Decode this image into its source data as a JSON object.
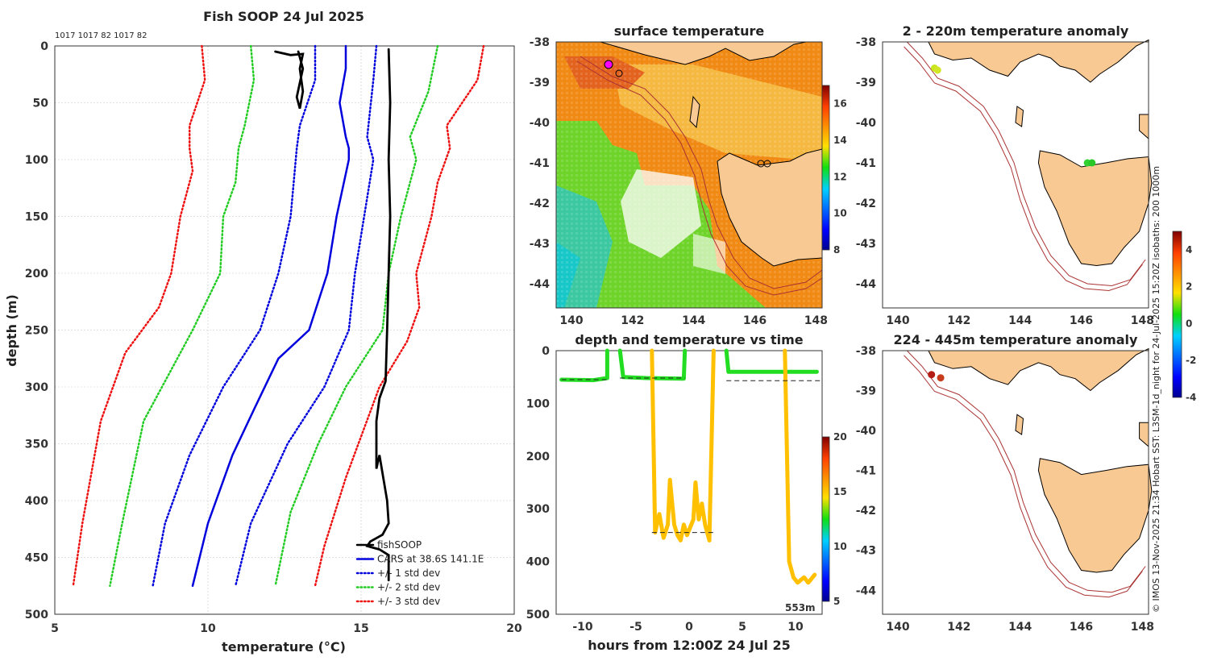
{
  "header": {
    "title": "Fish SOOP 24 Jul 2025",
    "ids_label": "1017 1017 82 1017 82",
    "credit": "© IMOS 13-Nov-2025 21:34 Hobart SST: L3SM-1d_night for 24-Jul-2025 15:20Z isobaths: 200  1000m"
  },
  "colors": {
    "fishsoop": "#000000",
    "cars": "#0000dd",
    "std1": "#0000dd",
    "std2": "#22cc22",
    "std3": "#ee1111",
    "land": "#f9c993",
    "isobath": "#aa3333"
  },
  "chart_data": [
    {
      "id": "profile",
      "type": "line",
      "title": "",
      "xlabel": "temperature (°C)",
      "ylabel": "depth (m)",
      "xlim": [
        5,
        20
      ],
      "ylim": [
        500,
        0
      ],
      "xticks": [
        5,
        10,
        15,
        20
      ],
      "yticks": [
        0,
        50,
        100,
        150,
        200,
        250,
        300,
        350,
        400,
        450,
        500
      ],
      "legend": [
        "fishSOOP",
        "CARS at 38.6S 141.1E",
        "+/- 1 std dev",
        "+/- 2 std dev",
        "+/- 3 std dev"
      ],
      "legend_position": "bottom-right",
      "series": [
        {
          "name": "CARS at 38.6S 141.1E",
          "style": "solid",
          "color": "cars",
          "points": [
            [
              14.5,
              0
            ],
            [
              14.5,
              20
            ],
            [
              14.3,
              50
            ],
            [
              14.5,
              80
            ],
            [
              14.6,
              90
            ],
            [
              14.6,
              100
            ],
            [
              14.2,
              150
            ],
            [
              13.9,
              200
            ],
            [
              13.3,
              250
            ],
            [
              12.3,
              275
            ],
            [
              11.5,
              320
            ],
            [
              10.8,
              360
            ],
            [
              10.0,
              420
            ],
            [
              9.5,
              475
            ]
          ]
        },
        {
          "name": "+/- 1 std dev",
          "style": "dotted",
          "color": "std1",
          "points": [
            [
              15.5,
              0
            ],
            [
              15.4,
              30
            ],
            [
              15.2,
              80
            ],
            [
              15.4,
              100
            ],
            [
              15.1,
              150
            ],
            [
              14.8,
              200
            ],
            [
              14.6,
              250
            ],
            [
              13.8,
              300
            ],
            [
              12.6,
              350
            ],
            [
              11.4,
              420
            ],
            [
              10.9,
              475
            ]
          ]
        },
        {
          "name": "+/- 1 std dev",
          "style": "dotted",
          "color": "std1",
          "points": [
            [
              13.5,
              0
            ],
            [
              13.5,
              30
            ],
            [
              13.0,
              70
            ],
            [
              12.9,
              90
            ],
            [
              12.7,
              150
            ],
            [
              12.3,
              200
            ],
            [
              11.7,
              250
            ],
            [
              10.5,
              300
            ],
            [
              9.4,
              360
            ],
            [
              8.6,
              420
            ],
            [
              8.2,
              475
            ]
          ]
        },
        {
          "name": "+/- 2 std dev",
          "style": "dotted",
          "color": "std2",
          "points": [
            [
              17.5,
              0
            ],
            [
              17.2,
              40
            ],
            [
              16.6,
              80
            ],
            [
              16.8,
              100
            ],
            [
              16.3,
              150
            ],
            [
              15.9,
              200
            ],
            [
              15.7,
              250
            ],
            [
              14.5,
              300
            ],
            [
              13.6,
              350
            ],
            [
              12.7,
              410
            ],
            [
              12.2,
              475
            ]
          ]
        },
        {
          "name": "+/- 2 std dev",
          "style": "dotted",
          "color": "std2",
          "points": [
            [
              11.4,
              0
            ],
            [
              11.5,
              30
            ],
            [
              11.2,
              70
            ],
            [
              11.0,
              90
            ],
            [
              10.9,
              120
            ],
            [
              10.5,
              150
            ],
            [
              10.4,
              200
            ],
            [
              9.5,
              250
            ],
            [
              7.9,
              330
            ],
            [
              7.2,
              420
            ],
            [
              6.8,
              475
            ]
          ]
        },
        {
          "name": "+/- 3 std dev",
          "style": "dotted",
          "color": "std3",
          "points": [
            [
              19.0,
              0
            ],
            [
              18.8,
              30
            ],
            [
              17.8,
              70
            ],
            [
              17.9,
              90
            ],
            [
              17.5,
              120
            ],
            [
              17.3,
              150
            ],
            [
              16.8,
              200
            ],
            [
              16.9,
              230
            ],
            [
              16.5,
              260
            ],
            [
              15.6,
              300
            ],
            [
              14.5,
              380
            ],
            [
              13.8,
              440
            ],
            [
              13.5,
              475
            ]
          ]
        },
        {
          "name": "+/- 3 std dev",
          "style": "dotted",
          "color": "std3",
          "points": [
            [
              9.8,
              0
            ],
            [
              9.9,
              30
            ],
            [
              9.4,
              70
            ],
            [
              9.4,
              90
            ],
            [
              9.5,
              110
            ],
            [
              9.1,
              150
            ],
            [
              8.8,
              200
            ],
            [
              8.4,
              230
            ],
            [
              7.3,
              270
            ],
            [
              6.5,
              330
            ],
            [
              5.9,
              420
            ],
            [
              5.6,
              475
            ]
          ]
        },
        {
          "name": "fishSOOP",
          "style": "solid",
          "color": "fishsoop",
          "points": [
            [
              12.2,
              5
            ],
            [
              12.7,
              8
            ],
            [
              13.1,
              7
            ],
            [
              13.0,
              20
            ],
            [
              13.1,
              40
            ],
            [
              13.0,
              55
            ],
            [
              12.9,
              45
            ],
            [
              13.1,
              20
            ],
            [
              12.95,
              5
            ]
          ]
        },
        {
          "name": "fishSOOP",
          "style": "solid",
          "color": "fishsoop",
          "points": [
            [
              15.9,
              3
            ],
            [
              15.95,
              50
            ],
            [
              15.9,
              100
            ],
            [
              15.95,
              150
            ],
            [
              15.9,
              200
            ],
            [
              15.85,
              250
            ],
            [
              15.8,
              295
            ],
            [
              15.6,
              310
            ],
            [
              15.5,
              330
            ],
            [
              15.5,
              372
            ],
            [
              15.6,
              360
            ],
            [
              15.85,
              400
            ],
            [
              15.9,
              420
            ],
            [
              15.7,
              430
            ],
            [
              15.3,
              436
            ],
            [
              15.2,
              440
            ],
            [
              15.6,
              443
            ],
            [
              15.9,
              448
            ],
            [
              15.9,
              470
            ]
          ]
        }
      ]
    },
    {
      "id": "depth_time",
      "type": "scatter",
      "title": "depth and temperature vs time",
      "xlabel": "hours from 12:00Z 24 Jul 25",
      "ylabel": "",
      "xlim": [
        -12.5,
        12.5
      ],
      "ylim": [
        500,
        0
      ],
      "xticks": [
        -10,
        -5,
        0,
        5,
        10
      ],
      "yticks": [
        0,
        100,
        200,
        300,
        400,
        500
      ],
      "colorbar": {
        "min": 5,
        "max": 20,
        "ticks": [
          5,
          10,
          15,
          20
        ]
      },
      "annotation": "553m",
      "series": [
        {
          "name": "green segment",
          "color": "#22dd22",
          "points": [
            [
              -12,
              55
            ],
            [
              -9,
              56
            ],
            [
              -7.7,
              52
            ],
            [
              -7.7,
              0
            ]
          ]
        },
        {
          "name": "green segment",
          "color": "#22dd22",
          "points": [
            [
              -6.5,
              0
            ],
            [
              -6.2,
              50
            ],
            [
              -4,
              52
            ],
            [
              -0.5,
              53
            ],
            [
              -0.4,
              0
            ]
          ]
        },
        {
          "name": "yellow segment",
          "color": "#ffc000",
          "points": [
            [
              -3.5,
              0
            ],
            [
              -3.2,
              345
            ],
            [
              -2.8,
              310
            ],
            [
              -2.4,
              355
            ],
            [
              -2.0,
              330
            ],
            [
              -1.8,
              245
            ],
            [
              -1.4,
              330
            ],
            [
              -1.1,
              350
            ],
            [
              -0.8,
              360
            ],
            [
              -0.5,
              330
            ],
            [
              -0.2,
              350
            ],
            [
              0.4,
              320
            ],
            [
              0.6,
              250
            ],
            [
              0.9,
              320
            ],
            [
              1.2,
              290
            ],
            [
              1.5,
              330
            ],
            [
              1.9,
              360
            ],
            [
              2.3,
              0
            ]
          ]
        },
        {
          "name": "green segment",
          "color": "#22dd22",
          "points": [
            [
              3.5,
              0
            ],
            [
              3.7,
              40
            ],
            [
              6,
              40
            ],
            [
              9,
              40
            ],
            [
              12,
              40
            ]
          ]
        },
        {
          "name": "yellow segment",
          "color": "#ffc000",
          "points": [
            [
              9,
              0
            ],
            [
              9.4,
              400
            ],
            [
              9.8,
              430
            ],
            [
              10.2,
              440
            ],
            [
              10.8,
              430
            ],
            [
              11.2,
              440
            ],
            [
              11.8,
              425
            ]
          ]
        }
      ],
      "dashed_lines": [
        [
          -12,
          55,
          -7.7,
          55
        ],
        [
          -6.5,
          52,
          -0.4,
          52
        ],
        [
          -3.5,
          345,
          2.3,
          345
        ],
        [
          3.5,
          57,
          12.5,
          57
        ]
      ]
    },
    {
      "id": "sst_map",
      "type": "heatmap",
      "title": "surface temperature",
      "xlim": [
        139.5,
        148.2
      ],
      "ylim": [
        -44.6,
        -38
      ],
      "xticks": [
        140,
        142,
        144,
        146,
        148
      ],
      "yticks": [
        -38,
        -39,
        -40,
        -41,
        -42,
        -43,
        -44
      ],
      "colorbar": {
        "min": 8,
        "max": 17,
        "ticks": [
          8,
          10,
          12,
          14,
          16
        ]
      }
    },
    {
      "id": "anomaly_shallow",
      "type": "scatter",
      "title": "2 - 220m temperature anomaly",
      "xlim": [
        139.5,
        148.2
      ],
      "ylim": [
        -44.6,
        -38
      ],
      "xticks": [
        140,
        142,
        144,
        146,
        148
      ],
      "yticks": [
        -38,
        -39,
        -40,
        -41,
        -42,
        -43,
        -44
      ],
      "points": [
        [
          141.2,
          -38.65,
          "#c8e61e"
        ],
        [
          141.3,
          -38.7,
          "#d2e628"
        ],
        [
          146.2,
          -41.0,
          "#32d232"
        ],
        [
          146.35,
          -41.0,
          "#28c828"
        ]
      ]
    },
    {
      "id": "anomaly_deep",
      "type": "scatter",
      "title": "224 - 445m temperature anomaly",
      "xlim": [
        139.5,
        148.2
      ],
      "ylim": [
        -44.6,
        -38
      ],
      "xticks": [
        140,
        142,
        144,
        146,
        148
      ],
      "yticks": [
        -38,
        -39,
        -40,
        -41,
        -42,
        -43,
        -44
      ],
      "points": [
        [
          141.1,
          -38.6,
          "#b41e14"
        ],
        [
          141.4,
          -38.68,
          "#c83c1e"
        ]
      ]
    },
    {
      "id": "anomaly_colorbar",
      "type": "heatmap",
      "colorbar": {
        "min": -4,
        "max": 5,
        "ticks": [
          -4,
          -2,
          0,
          2,
          4
        ]
      }
    }
  ]
}
